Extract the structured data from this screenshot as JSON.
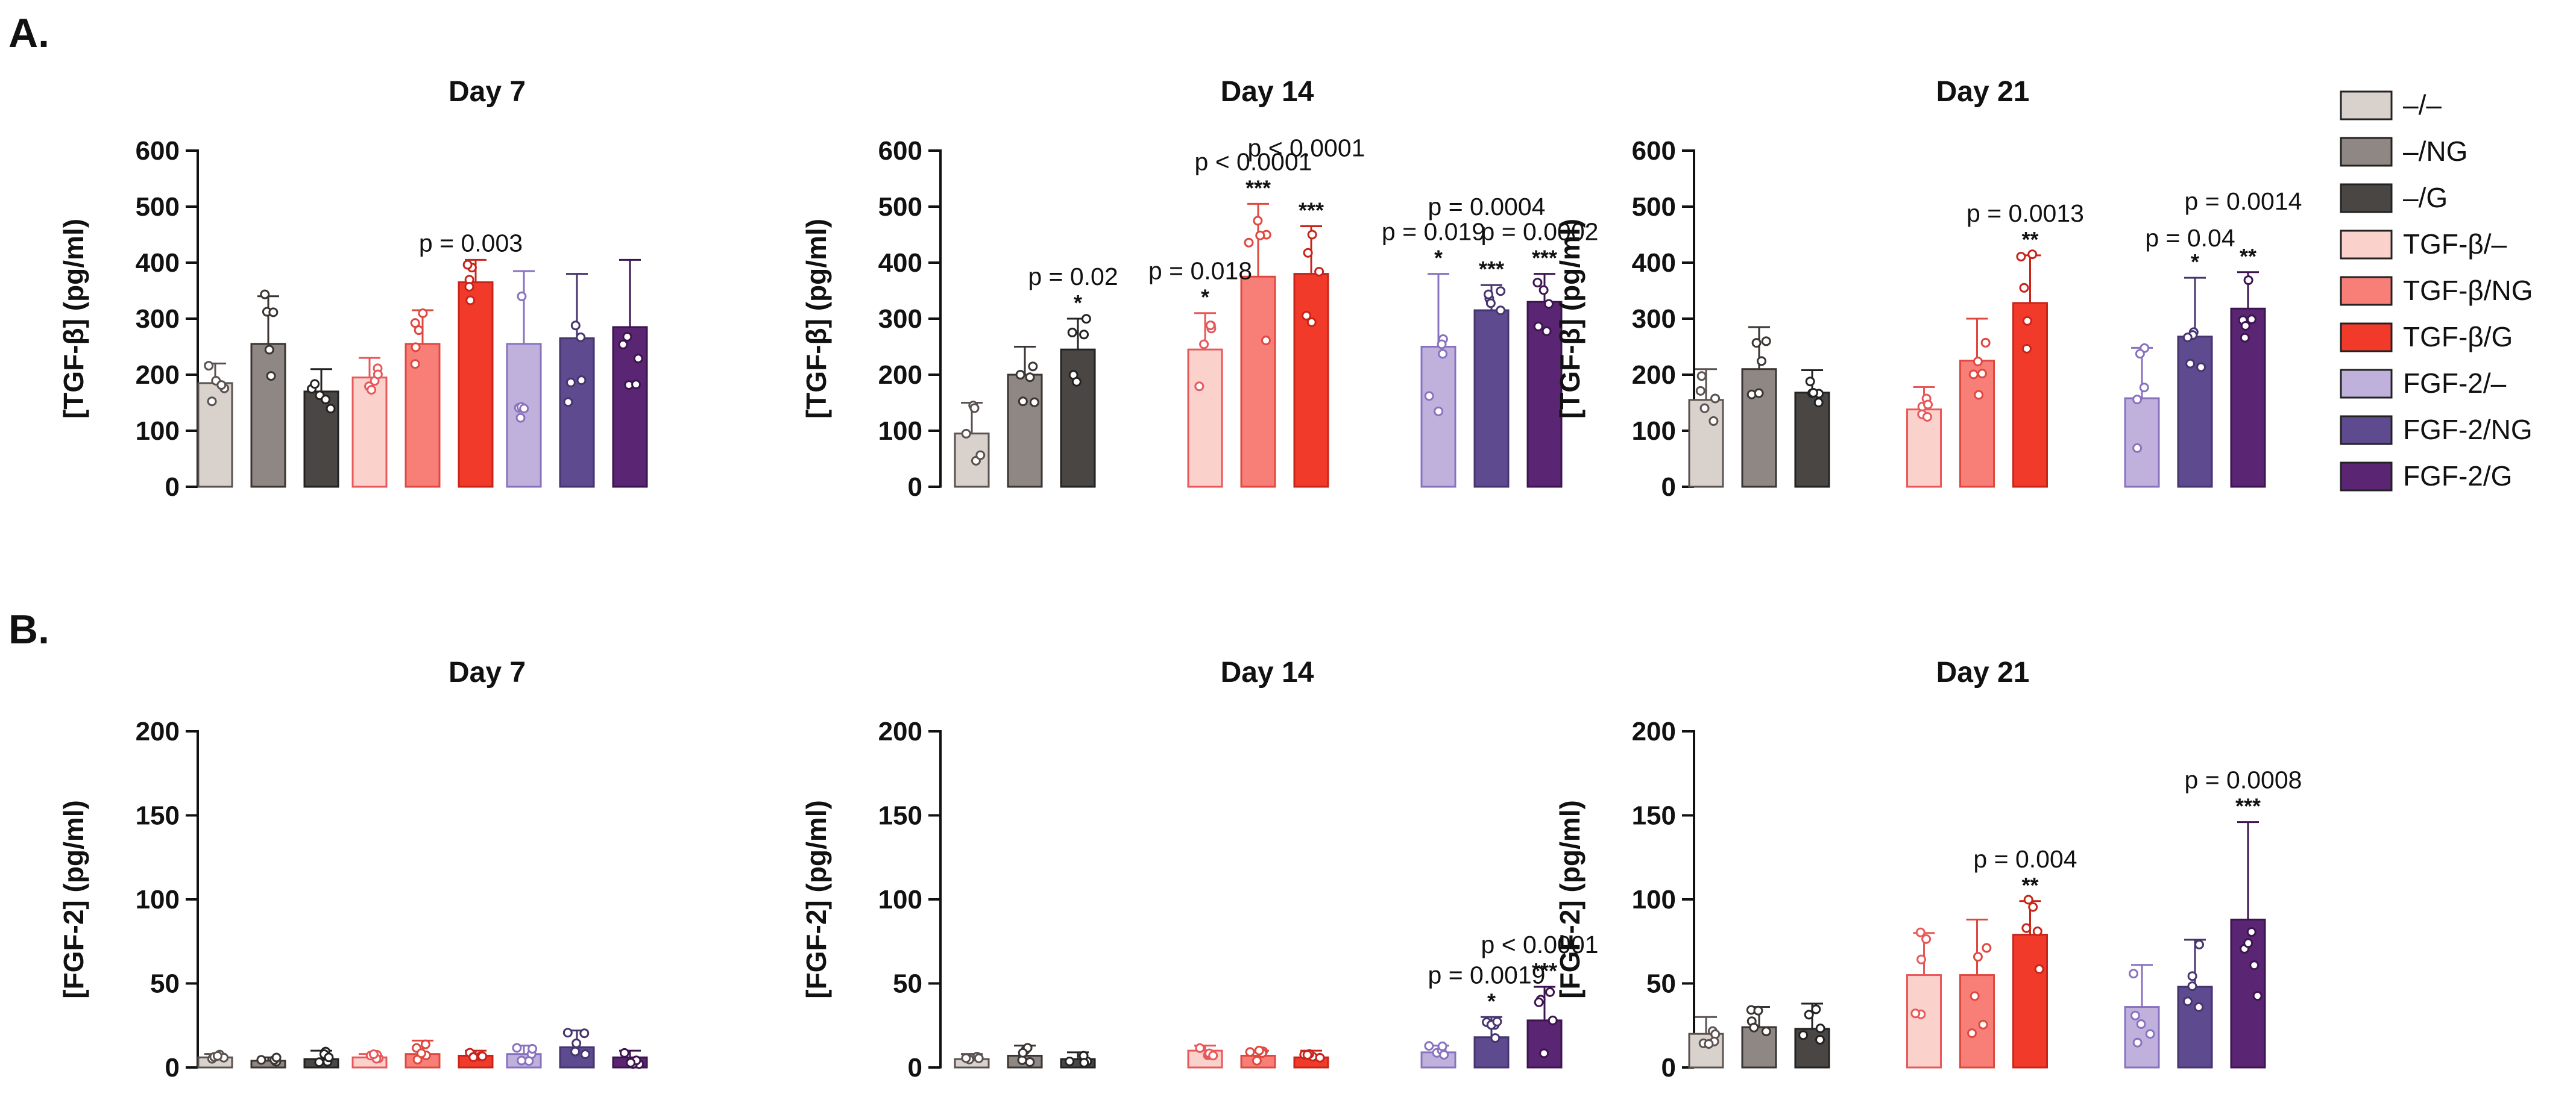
{
  "figure": {
    "panel_a_label": "A.",
    "panel_b_label": "B."
  },
  "legend": [
    {
      "label": "–/–",
      "color": "#d9d1cc"
    },
    {
      "label": "–/NG",
      "color": "#8f8783"
    },
    {
      "label": "–/G",
      "color": "#4a4644"
    },
    {
      "label": "TGF-β/–",
      "color": "#fbd1cc"
    },
    {
      "label": "TGF-β/NG",
      "color": "#f77f78"
    },
    {
      "label": "TGF-β/G",
      "color": "#f13a2a"
    },
    {
      "label": "FGF-2/–",
      "color": "#bfb1dc"
    },
    {
      "label": "FGF-2/NG",
      "color": "#5d4a8f"
    },
    {
      "label": "FGF-2/G",
      "color": "#5a2572"
    }
  ],
  "chart_data": [
    {
      "type": "bar",
      "panel": "A",
      "title": "Day 7",
      "ylabel": "[TGF-β] (pg/ml)",
      "ylim": [
        0,
        600
      ],
      "yticks": [
        0,
        100,
        200,
        300,
        400,
        500,
        600
      ],
      "categories": [
        "–/–",
        "–/NG",
        "–/G",
        "TGF-β/–",
        "TGF-β/NG",
        "TGF-β/G",
        "FGF-2/–",
        "FGF-2/NG",
        "FGF-2/G"
      ],
      "values": [
        185,
        255,
        170,
        195,
        255,
        365,
        255,
        265,
        285
      ],
      "errors": [
        35,
        85,
        40,
        35,
        60,
        40,
        130,
        115,
        120
      ],
      "annotations": [
        {
          "index": 5,
          "p": "p = 0.003",
          "stars": ""
        }
      ]
    },
    {
      "type": "bar",
      "panel": "A",
      "title": "Day 14",
      "ylabel": "[TGF-β] (pg/ml)",
      "ylim": [
        0,
        600
      ],
      "yticks": [
        0,
        100,
        200,
        300,
        400,
        500,
        600
      ],
      "categories": [
        "–/–",
        "–/NG",
        "–/G",
        "TGF-β/–",
        "TGF-β/NG",
        "TGF-β/G",
        "FGF-2/–",
        "FGF-2/NG",
        "FGF-2/G"
      ],
      "values": [
        95,
        200,
        245,
        245,
        375,
        380,
        250,
        315,
        330
      ],
      "errors": [
        55,
        50,
        55,
        65,
        130,
        85,
        130,
        45,
        50
      ],
      "annotations": [
        {
          "index": 2,
          "p": "p = 0.02",
          "stars": "*"
        },
        {
          "index": 3,
          "p": "p = 0.018",
          "stars": "*"
        },
        {
          "index": 4,
          "p": "p < 0.0001",
          "stars": "***"
        },
        {
          "index": 5,
          "p": "p < 0.0001",
          "stars": "***"
        },
        {
          "index": 6,
          "p": "p = 0.019",
          "stars": "*"
        },
        {
          "index": 7,
          "p": "p = 0.0004",
          "stars": "***"
        },
        {
          "index": 8,
          "p": "p = 0.0002",
          "stars": "***"
        }
      ]
    },
    {
      "type": "bar",
      "panel": "A",
      "title": "Day 21",
      "ylabel": "[TGF-β] (pg/ml)",
      "ylim": [
        0,
        600
      ],
      "yticks": [
        0,
        100,
        200,
        300,
        400,
        500,
        600
      ],
      "categories": [
        "–/–",
        "–/NG",
        "–/G",
        "TGF-β/–",
        "TGF-β/NG",
        "TGF-β/G",
        "FGF-2/–",
        "FGF-2/NG",
        "FGF-2/G"
      ],
      "values": [
        155,
        210,
        168,
        138,
        225,
        328,
        158,
        268,
        318
      ],
      "errors": [
        55,
        75,
        40,
        40,
        75,
        85,
        90,
        105,
        65
      ],
      "annotations": [
        {
          "index": 5,
          "p": "p = 0.0013",
          "stars": "**"
        },
        {
          "index": 7,
          "p": "p = 0.04",
          "stars": "*"
        },
        {
          "index": 8,
          "p": "p = 0.0014",
          "stars": "**"
        }
      ]
    },
    {
      "type": "bar",
      "panel": "B",
      "title": "Day 7",
      "ylabel": "[FGF-2] (pg/ml)",
      "ylim": [
        0,
        200
      ],
      "yticks": [
        0,
        50,
        100,
        150,
        200
      ],
      "categories": [
        "–/–",
        "–/NG",
        "–/G",
        "TGF-β/–",
        "TGF-β/NG",
        "TGF-β/G",
        "FGF-2/–",
        "FGF-2/NG",
        "FGF-2/G"
      ],
      "values": [
        6,
        4,
        5,
        6,
        8,
        7,
        8,
        12,
        6
      ],
      "errors": [
        2,
        2,
        5,
        2,
        8,
        3,
        5,
        10,
        4
      ],
      "annotations": []
    },
    {
      "type": "bar",
      "panel": "B",
      "title": "Day 14",
      "ylabel": "[FGF-2] (pg/ml)",
      "ylim": [
        0,
        200
      ],
      "yticks": [
        0,
        50,
        100,
        150,
        200
      ],
      "categories": [
        "–/–",
        "–/NG",
        "–/G",
        "TGF-β/–",
        "TGF-β/NG",
        "TGF-β/G",
        "FGF-2/–",
        "FGF-2/NG",
        "FGF-2/G"
      ],
      "values": [
        5,
        7,
        5,
        10,
        7,
        6,
        9,
        18,
        28
      ],
      "errors": [
        3,
        6,
        4,
        3,
        3,
        4,
        4,
        12,
        20
      ],
      "annotations": [
        {
          "index": 7,
          "p": "p = 0.0019",
          "stars": "*"
        },
        {
          "index": 8,
          "p": "p < 0.0001",
          "stars": "***"
        }
      ]
    },
    {
      "type": "bar",
      "panel": "B",
      "title": "Day 21",
      "ylabel": "[FGF-2] (pg/ml)",
      "ylim": [
        0,
        200
      ],
      "yticks": [
        0,
        50,
        100,
        150,
        200
      ],
      "categories": [
        "–/–",
        "–/NG",
        "–/G",
        "TGF-β/–",
        "TGF-β/NG",
        "TGF-β/G",
        "FGF-2/–",
        "FGF-2/NG",
        "FGF-2/G"
      ],
      "values": [
        20,
        24,
        23,
        55,
        55,
        79,
        36,
        48,
        88
      ],
      "errors": [
        10,
        12,
        15,
        25,
        33,
        20,
        25,
        28,
        58
      ],
      "annotations": [
        {
          "index": 5,
          "p": "p = 0.004",
          "stars": "**"
        },
        {
          "index": 8,
          "p": "p = 0.0008",
          "stars": "***"
        }
      ]
    }
  ]
}
